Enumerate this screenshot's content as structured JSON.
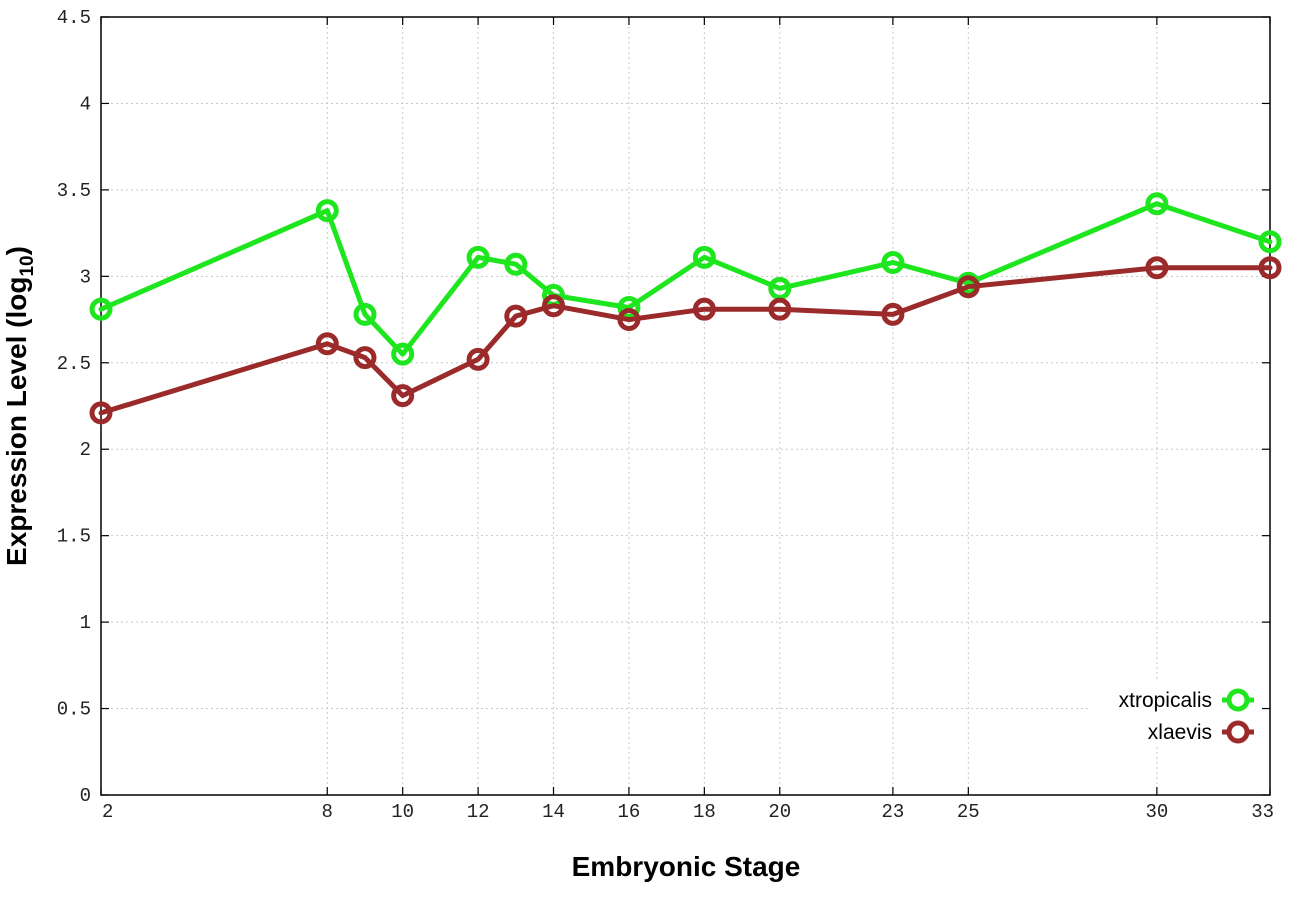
{
  "chart_data": {
    "type": "line",
    "title": "",
    "xlabel": "Embryonic Stage",
    "ylabel_main": "Expression Level (log",
    "ylabel_sub": "10",
    "ylabel_close": ")",
    "x": [
      2,
      8,
      9,
      10,
      12,
      13,
      14,
      16,
      18,
      20,
      23,
      25,
      30,
      33
    ],
    "x_ticks": [
      2,
      8,
      10,
      12,
      14,
      16,
      18,
      20,
      23,
      25,
      30,
      33
    ],
    "y_ticks": [
      "0",
      "0.5",
      "1",
      "1.5",
      "2",
      "2.5",
      "3",
      "3.5",
      "4",
      "4.5"
    ],
    "xlim": [
      2,
      33
    ],
    "ylim": [
      0,
      4.5
    ],
    "grid": true,
    "legend_position": "bottom-right",
    "series": [
      {
        "name": "xtropicalis",
        "color": "#1ee61e",
        "values": [
          2.81,
          3.38,
          2.78,
          2.55,
          3.11,
          3.07,
          2.89,
          2.82,
          3.11,
          2.93,
          3.08,
          2.96,
          3.42,
          3.2
        ]
      },
      {
        "name": "xlaevis",
        "color": "#9b2a2a",
        "values": [
          2.21,
          2.61,
          2.53,
          2.31,
          2.52,
          2.77,
          2.83,
          2.75,
          2.81,
          2.81,
          2.78,
          2.94,
          3.05,
          3.05
        ]
      }
    ]
  }
}
